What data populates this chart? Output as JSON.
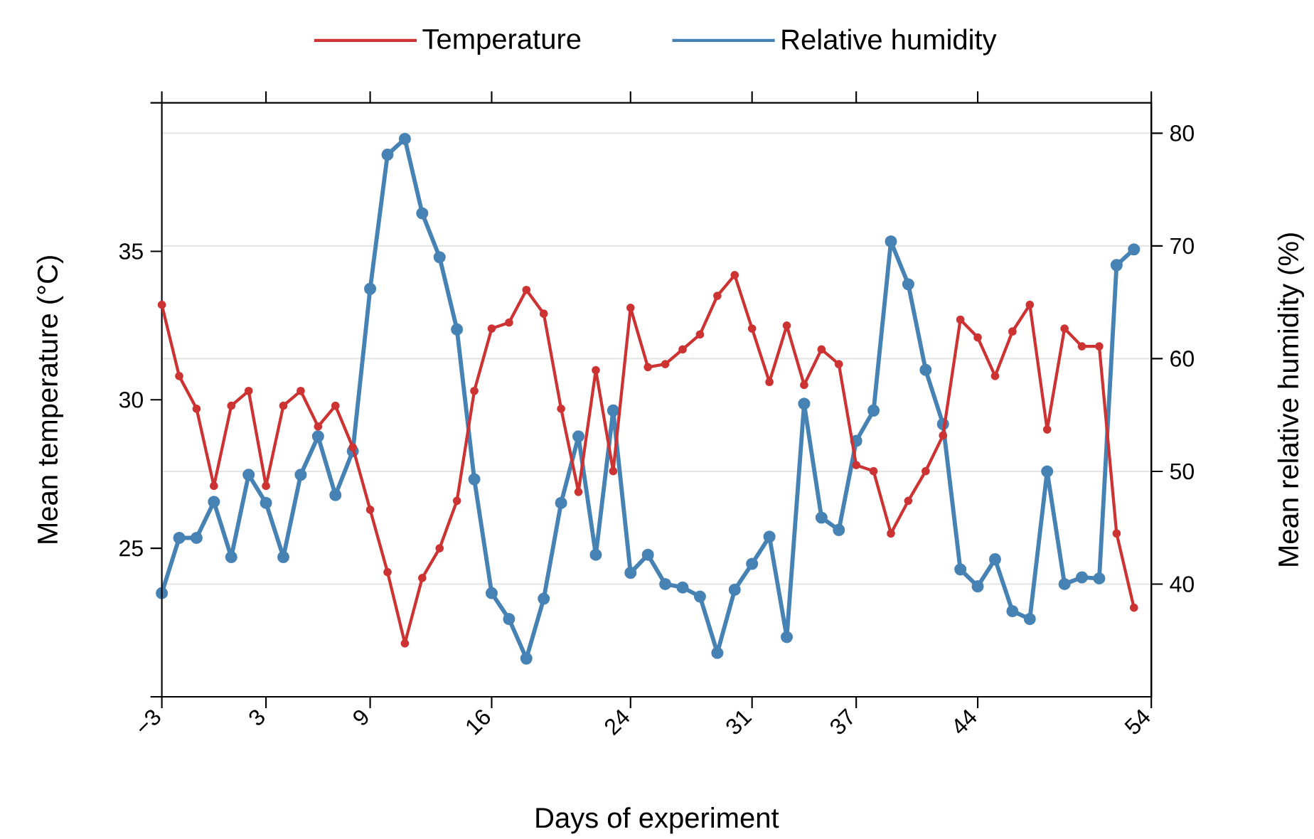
{
  "chart_data": {
    "type": "line",
    "xlabel": "Days of experiment",
    "ylabel": "Mean temperature (°C)",
    "y2label": "Mean relative humidity (%)",
    "x": [
      -3,
      -2,
      -1,
      0,
      1,
      2,
      3,
      4,
      5,
      6,
      7,
      8,
      9,
      10,
      11,
      12,
      13,
      14,
      15,
      16,
      17,
      18,
      19,
      20,
      21,
      22,
      23,
      24,
      25,
      26,
      27,
      28,
      29,
      30,
      31,
      32,
      33,
      34,
      35,
      36,
      37,
      38,
      39,
      40,
      41,
      42,
      43,
      44,
      45,
      46,
      47,
      48,
      49,
      50,
      51,
      52,
      53
    ],
    "series": [
      {
        "name": "Temperature",
        "color": "#cd3333",
        "values": [
          33.2,
          30.8,
          29.7,
          27.1,
          29.8,
          30.3,
          27.1,
          29.8,
          30.3,
          29.1,
          29.8,
          28.4,
          26.3,
          24.2,
          21.8,
          24.0,
          25.0,
          26.6,
          30.3,
          32.4,
          32.6,
          33.7,
          32.9,
          29.7,
          26.9,
          31.0,
          27.6,
          33.1,
          31.1,
          31.2,
          31.7,
          32.2,
          33.5,
          34.2,
          32.4,
          30.6,
          32.5,
          30.5,
          31.7,
          31.2,
          27.8,
          27.6,
          25.5,
          26.6,
          27.6,
          28.8,
          32.7,
          32.1,
          30.8,
          32.3,
          33.2,
          29.0,
          32.4,
          31.8,
          31.8,
          25.5,
          23.0
        ]
      },
      {
        "name": "Relative humidity",
        "color": "#4682b4",
        "axis": "y2",
        "values": [
          39.2,
          44.1,
          44.1,
          47.3,
          42.4,
          49.7,
          47.2,
          42.4,
          49.7,
          53.1,
          47.9,
          51.8,
          66.2,
          78.1,
          79.5,
          72.9,
          69.0,
          62.6,
          49.3,
          39.2,
          36.9,
          33.4,
          38.7,
          47.2,
          53.1,
          42.6,
          55.4,
          41.0,
          42.6,
          40.0,
          39.7,
          38.9,
          33.9,
          39.5,
          41.8,
          44.2,
          35.3,
          56.0,
          45.9,
          44.8,
          52.7,
          55.4,
          70.4,
          66.6,
          59.0,
          54.2,
          41.3,
          39.8,
          42.2,
          37.6,
          36.9,
          50.0,
          40.0,
          40.6,
          40.5,
          68.3,
          69.7
        ]
      }
    ],
    "xlim": [
      -3,
      54
    ],
    "xticks": [
      {
        "value": -3,
        "label": "−3"
      },
      3,
      9,
      16,
      24,
      31,
      37,
      44,
      54
    ],
    "ylim": [
      20,
      40
    ],
    "yticks": [
      {
        "value": 20,
        "label": null
      },
      25,
      30,
      35,
      {
        "value": 40,
        "label": null
      }
    ],
    "y2lim": [
      30,
      82.7
    ],
    "y2ticks": [
      40,
      50,
      60,
      70,
      80
    ],
    "grid": true,
    "legend": "top",
    "marker": "circle",
    "line_style": "solid"
  }
}
